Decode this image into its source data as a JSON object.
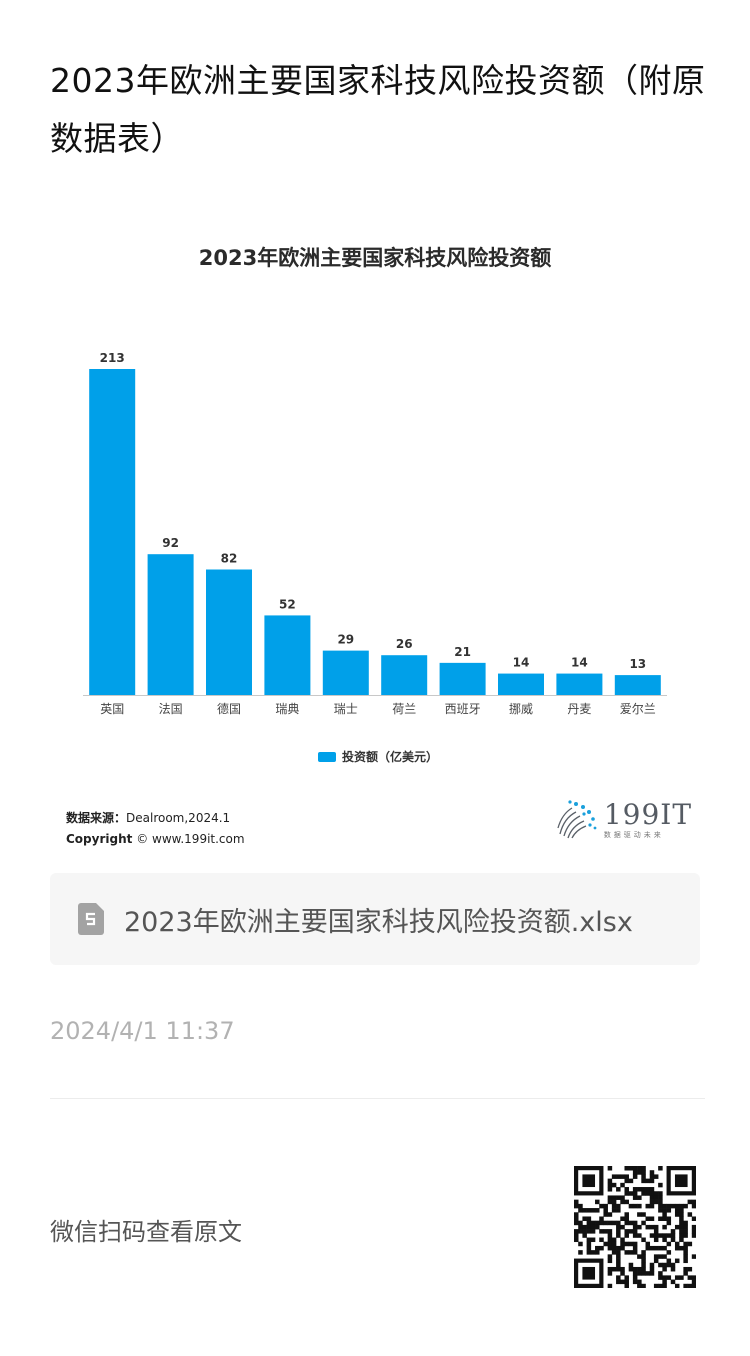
{
  "article": {
    "title": "2023年欧洲主要国家科技风险投资额（附原数据表）"
  },
  "chart": {
    "title": "2023年欧洲主要国家科技风险投资额",
    "legend": "投资额（亿美元）",
    "source_label": "数据来源：",
    "source_value": "Dealroom,2024.1",
    "copyright_label": "Copyright",
    "copyright_value": "© www.199it.com",
    "brand": "199IT",
    "brand_tag": "数据驱动未来",
    "bar_color": "#00a0e9"
  },
  "chart_data": {
    "type": "bar",
    "title": "2023年欧洲主要国家科技风险投资额",
    "categories": [
      "英国",
      "法国",
      "德国",
      "瑞典",
      "瑞士",
      "荷兰",
      "西班牙",
      "挪威",
      "丹麦",
      "爱尔兰"
    ],
    "series": [
      {
        "name": "投资额（亿美元）",
        "values": [
          213,
          92,
          82,
          52,
          29,
          26,
          21,
          14,
          14,
          13
        ]
      }
    ],
    "xlabel": "",
    "ylabel": "",
    "ylim": [
      0,
      213
    ],
    "grid": false,
    "legend_position": "bottom"
  },
  "attachment": {
    "file_name": "2023年欧洲主要国家科技风险投资额.xlsx",
    "icon": "spreadsheet-file-icon"
  },
  "meta": {
    "timestamp": "2024/4/1 11:37",
    "scan_text": "微信扫码查看原文"
  }
}
